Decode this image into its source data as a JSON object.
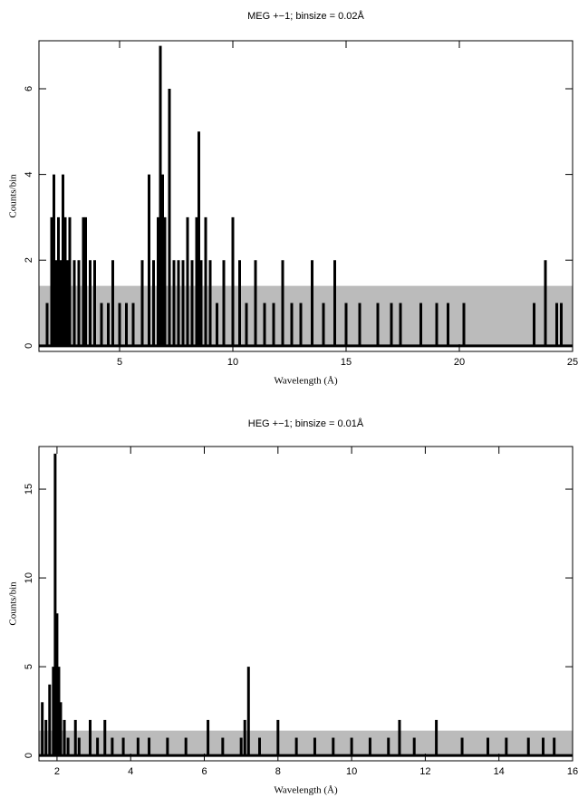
{
  "chart_data": [
    {
      "type": "spike",
      "title": "MEG +−1; binsize = 0.02Å",
      "x_label": "Wavelength (Å)",
      "y_label": "Counts/bin",
      "xlim": [
        1.44,
        25
      ],
      "ylim": [
        -0.13,
        7.12
      ],
      "xticks": [
        5,
        10,
        15,
        20,
        25
      ],
      "yticks": [
        0,
        2,
        4,
        6
      ],
      "error_band": [
        0,
        1.4
      ],
      "band_color": "#bbbbbb",
      "color": "#000000",
      "x": [
        1.8,
        2.0,
        2.1,
        2.2,
        2.3,
        2.4,
        2.5,
        2.6,
        2.7,
        2.8,
        3.0,
        3.2,
        3.4,
        3.5,
        3.7,
        3.9,
        4.2,
        4.5,
        4.7,
        5.0,
        5.3,
        5.6,
        6.0,
        6.3,
        6.5,
        6.7,
        6.8,
        6.9,
        7.0,
        7.2,
        7.4,
        7.6,
        7.8,
        8.0,
        8.2,
        8.4,
        8.5,
        8.6,
        8.8,
        9.0,
        9.3,
        9.6,
        10.0,
        10.3,
        10.6,
        11.0,
        11.4,
        11.8,
        12.2,
        12.6,
        13.0,
        13.5,
        14.0,
        14.5,
        15.0,
        15.6,
        16.4,
        17.0,
        17.4,
        18.3,
        19.0,
        19.5,
        20.2,
        23.3,
        23.8,
        24.3,
        24.5
      ],
      "values": [
        1,
        3,
        4,
        2,
        3,
        2,
        4,
        3,
        2,
        3,
        2,
        2,
        3,
        3,
        2,
        2,
        1,
        1,
        2,
        1,
        1,
        1,
        2,
        4,
        2,
        3,
        7,
        4,
        3,
        6,
        2,
        2,
        2,
        3,
        2,
        3,
        5,
        2,
        3,
        2,
        1,
        2,
        3,
        2,
        1,
        2,
        1,
        1,
        2,
        1,
        1,
        2,
        1,
        2,
        1,
        1,
        1,
        1,
        1,
        1,
        1,
        1,
        1,
        1,
        2,
        1,
        1
      ]
    },
    {
      "type": "spike",
      "title": "HEG +−1; binsize = 0.01Å",
      "x_label": "Wavelength (Å)",
      "y_label": "Counts/bin",
      "xlim": [
        1.51,
        16
      ],
      "ylim": [
        -0.3,
        17.4
      ],
      "xticks": [
        2,
        4,
        6,
        8,
        10,
        12,
        14,
        16
      ],
      "yticks": [
        0,
        5,
        10,
        15
      ],
      "error_band": [
        0,
        1.4
      ],
      "band_color": "#bbbbbb",
      "color": "#000000",
      "x": [
        1.6,
        1.7,
        1.8,
        1.9,
        1.95,
        2.0,
        2.05,
        2.1,
        2.2,
        2.3,
        2.5,
        2.6,
        2.9,
        3.1,
        3.3,
        3.5,
        3.8,
        4.2,
        4.5,
        5.0,
        5.5,
        6.1,
        6.5,
        7.0,
        7.1,
        7.2,
        7.5,
        8.0,
        8.5,
        9.0,
        9.5,
        10.0,
        10.5,
        11.0,
        11.3,
        11.7,
        12.3,
        13.0,
        13.7,
        14.2,
        14.8,
        15.2,
        15.5
      ],
      "values": [
        3,
        2,
        4,
        5,
        17,
        8,
        5,
        3,
        2,
        1,
        2,
        1,
        2,
        1,
        2,
        1,
        1,
        1,
        1,
        1,
        1,
        2,
        1,
        1,
        2,
        5,
        1,
        2,
        1,
        1,
        1,
        1,
        1,
        1,
        2,
        1,
        2,
        1,
        1,
        1,
        1,
        1,
        1
      ]
    }
  ]
}
